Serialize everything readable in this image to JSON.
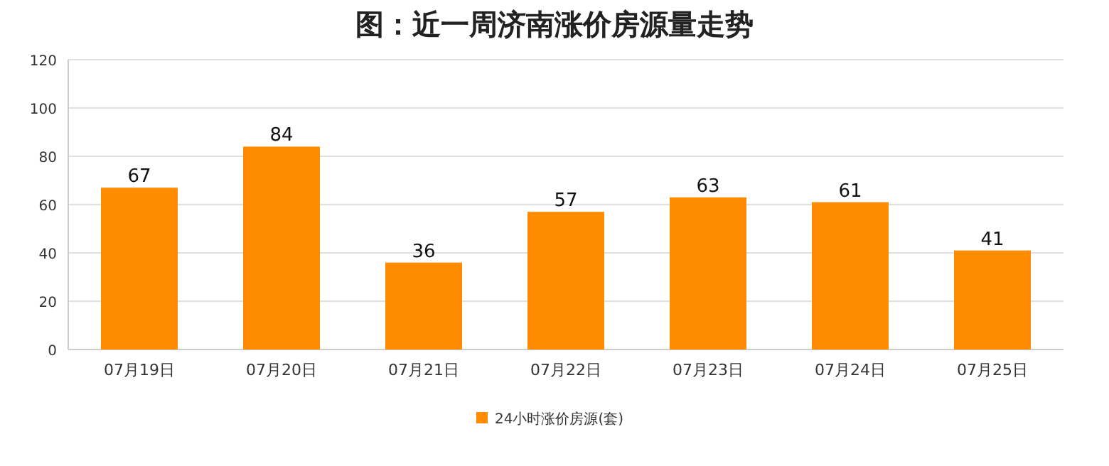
{
  "chart_data": {
    "type": "bar",
    "title": "图：近一周济南涨价房源量走势",
    "categories": [
      "07月19日",
      "07月20日",
      "07月21日",
      "07月22日",
      "07月23日",
      "07月24日",
      "07月25日"
    ],
    "series": [
      {
        "name": "24小时涨价房源(套)",
        "color": "#ff8c00",
        "values": [
          67,
          84,
          36,
          57,
          63,
          61,
          41
        ]
      }
    ],
    "ylim": [
      0,
      120
    ],
    "yticks": [
      0,
      20,
      40,
      60,
      80,
      100,
      120
    ],
    "grid": "y",
    "legend": "bottom",
    "data_labels": true
  }
}
